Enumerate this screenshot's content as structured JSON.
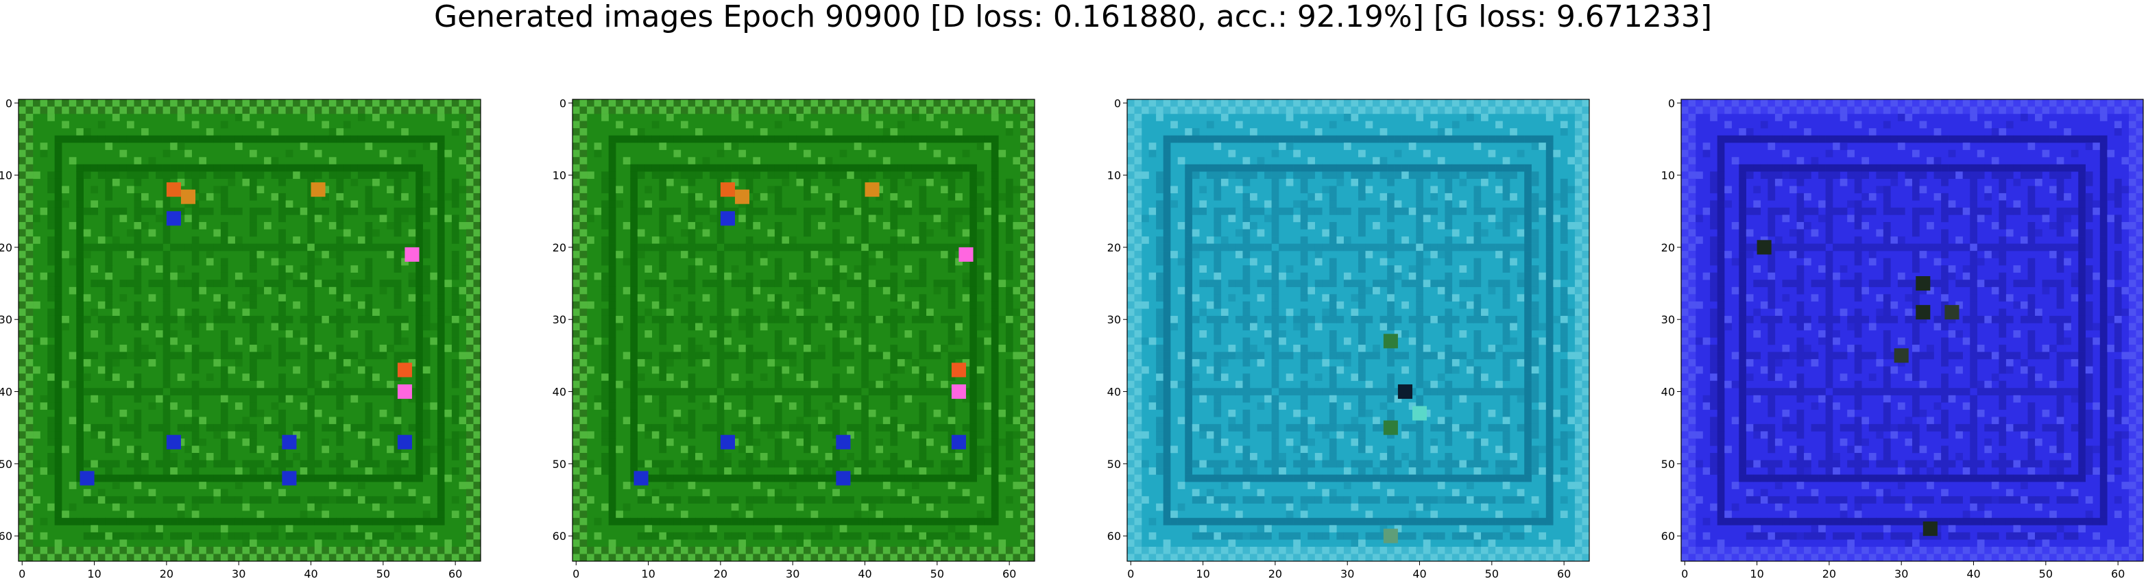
{
  "figure": {
    "suptitle": "Generated images Epoch 90900 [D loss: 0.161880, acc.: 92.19%] [G loss: 9.671233]"
  },
  "chart_data": [
    {
      "type": "heatmap",
      "xlim": [
        -0.5,
        63.5
      ],
      "ylim": [
        63.5,
        -0.5
      ],
      "xticks": [
        0,
        10,
        20,
        30,
        40,
        50,
        60
      ],
      "yticks": [
        0,
        10,
        20,
        30,
        40,
        50,
        60
      ],
      "palette": {
        "base": "#1f8a16",
        "grid": "#0d6a09",
        "light": "#4fb63c",
        "border": "#2b7a1c"
      },
      "blobs": [
        {
          "x": 21,
          "y": 12,
          "color": "#e8641a"
        },
        {
          "x": 23,
          "y": 13,
          "color": "#d9891f"
        },
        {
          "x": 41,
          "y": 12,
          "color": "#d88a1c"
        },
        {
          "x": 53,
          "y": 37,
          "color": "#f05a1e"
        },
        {
          "x": 54,
          "y": 21,
          "color": "#ff66e0"
        },
        {
          "x": 53,
          "y": 40,
          "color": "#ff66e0"
        },
        {
          "x": 21,
          "y": 16,
          "color": "#1d2fd6"
        },
        {
          "x": 21,
          "y": 47,
          "color": "#1a2fd0"
        },
        {
          "x": 37,
          "y": 47,
          "color": "#1a2fd0"
        },
        {
          "x": 53,
          "y": 47,
          "color": "#1a2fd0"
        },
        {
          "x": 9,
          "y": 52,
          "color": "#1a2fd0"
        },
        {
          "x": 37,
          "y": 52,
          "color": "#1a2fd0"
        }
      ]
    },
    {
      "type": "heatmap",
      "xlim": [
        -0.5,
        63.5
      ],
      "ylim": [
        63.5,
        -0.5
      ],
      "xticks": [
        0,
        10,
        20,
        30,
        40,
        50,
        60
      ],
      "yticks": [
        0,
        10,
        20,
        30,
        40,
        50,
        60
      ],
      "palette": {
        "base": "#1f8a16",
        "grid": "#0d6a09",
        "light": "#4fb63c",
        "border": "#2b7a1c"
      },
      "blobs": [
        {
          "x": 21,
          "y": 12,
          "color": "#e8641a"
        },
        {
          "x": 23,
          "y": 13,
          "color": "#d9891f"
        },
        {
          "x": 41,
          "y": 12,
          "color": "#d88a1c"
        },
        {
          "x": 53,
          "y": 37,
          "color": "#f05a1e"
        },
        {
          "x": 54,
          "y": 21,
          "color": "#ff66e0"
        },
        {
          "x": 53,
          "y": 40,
          "color": "#ff66e0"
        },
        {
          "x": 21,
          "y": 16,
          "color": "#1d2fd6"
        },
        {
          "x": 21,
          "y": 47,
          "color": "#1a2fd0"
        },
        {
          "x": 37,
          "y": 47,
          "color": "#1a2fd0"
        },
        {
          "x": 53,
          "y": 47,
          "color": "#1a2fd0"
        },
        {
          "x": 9,
          "y": 52,
          "color": "#1a2fd0"
        },
        {
          "x": 37,
          "y": 52,
          "color": "#1a2fd0"
        }
      ]
    },
    {
      "type": "heatmap",
      "xlim": [
        -0.5,
        63.5
      ],
      "ylim": [
        63.5,
        -0.5
      ],
      "xticks": [
        0,
        10,
        20,
        30,
        40,
        50,
        60
      ],
      "yticks": [
        0,
        10,
        20,
        30,
        40,
        50,
        60
      ],
      "palette": {
        "base": "#22a9c4",
        "grid": "#127d9c",
        "light": "#5cc8da",
        "border": "#3fb7cf"
      },
      "blobs": [
        {
          "x": 36,
          "y": 33,
          "color": "#2f7d3a"
        },
        {
          "x": 38,
          "y": 40,
          "color": "#0b1c2e"
        },
        {
          "x": 40,
          "y": 43,
          "color": "#5ad9c9"
        },
        {
          "x": 36,
          "y": 45,
          "color": "#2f7d3a"
        },
        {
          "x": 36,
          "y": 60,
          "color": "#5f9e79"
        }
      ]
    },
    {
      "type": "heatmap",
      "xlim": [
        -0.5,
        63.5
      ],
      "ylim": [
        63.5,
        -0.5
      ],
      "xticks": [
        0,
        10,
        20,
        30,
        40,
        50,
        60
      ],
      "yticks": [
        0,
        10,
        20,
        30,
        40,
        50,
        60
      ],
      "palette": {
        "base": "#2f2ee6",
        "grid": "#1c1ba8",
        "light": "#4e52f2",
        "border": "#3e3df0"
      },
      "blobs": [
        {
          "x": 33,
          "y": 25,
          "color": "#1b2a1c"
        },
        {
          "x": 33,
          "y": 29,
          "color": "#1b2a1c"
        },
        {
          "x": 37,
          "y": 29,
          "color": "#2b3a2a"
        },
        {
          "x": 30,
          "y": 35,
          "color": "#2b3a2a"
        },
        {
          "x": 34,
          "y": 59,
          "color": "#1b2a1c"
        },
        {
          "x": 11,
          "y": 20,
          "color": "#1b2a1c"
        }
      ]
    }
  ]
}
